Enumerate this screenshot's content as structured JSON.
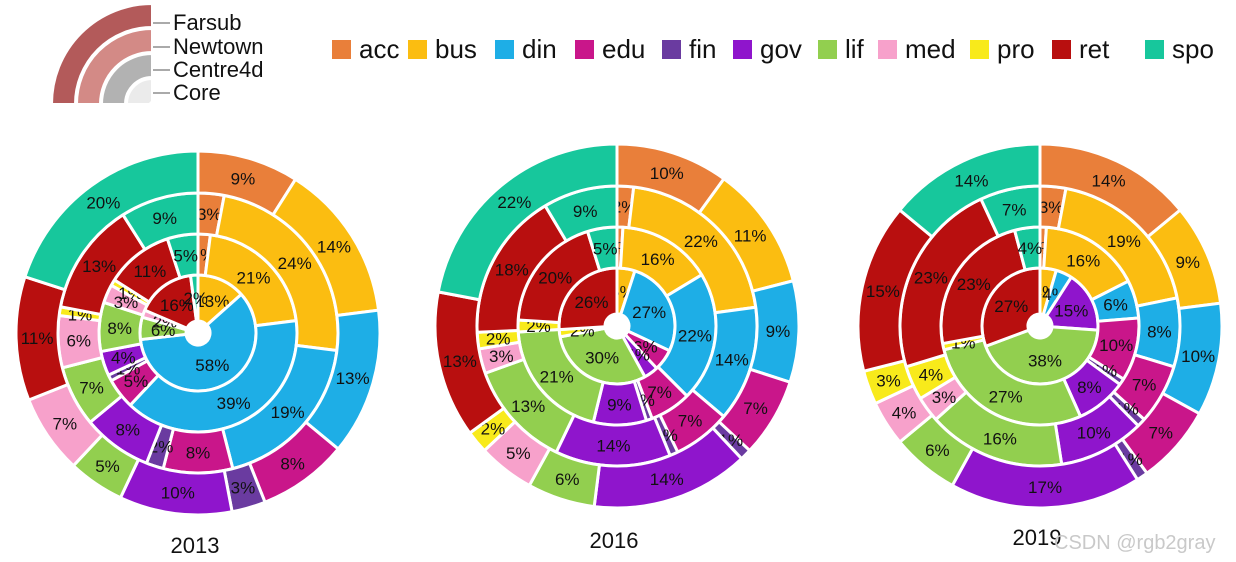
{
  "ring_legend": [
    "Farsub",
    "Newtown",
    "Centre4d",
    "Core"
  ],
  "categories": [
    "acc",
    "bus",
    "din",
    "edu",
    "fin",
    "gov",
    "lif",
    "med",
    "pro",
    "ret",
    "spo"
  ],
  "colors": {
    "acc": "#e97f3a",
    "bus": "#fbbd11",
    "din": "#1eaee6",
    "edu": "#c9168a",
    "fin": "#6a3ba0",
    "gov": "#8f15cc",
    "lif": "#92cf4f",
    "med": "#f7a1cb",
    "pro": "#f8ea1b",
    "ret": "#b80f0f",
    "spo": "#17c79c"
  },
  "ring_legend_colors": [
    "#ebebeb",
    "#b2b2b2",
    "#d38a86",
    "#b35a5a"
  ],
  "watermark": "CSDN @rgb2gray",
  "chart_data": [
    {
      "type": "pie",
      "title": "2013",
      "rings": [
        {
          "name": "Core",
          "values": {
            "acc": 0,
            "bus": 13,
            "din": 58,
            "edu": 0,
            "fin": 0,
            "gov": 0,
            "lif": 6,
            "med": 2,
            "pro": 0,
            "ret": 16,
            "spo": 2
          }
        },
        {
          "name": "Centre4d",
          "values": {
            "acc": 2,
            "bus": 21,
            "din": 39,
            "edu": 5,
            "fin": 1,
            "gov": 4,
            "lif": 8,
            "med": 3,
            "pro": 1,
            "ret": 11,
            "spo": 5
          }
        },
        {
          "name": "Newtown",
          "values": {
            "acc": 3,
            "bus": 24,
            "din": 19,
            "edu": 8,
            "fin": 2,
            "gov": 8,
            "lif": 7,
            "med": 6,
            "pro": 1,
            "ret": 13,
            "spo": 9
          }
        },
        {
          "name": "Farsub",
          "values": {
            "acc": 9,
            "bus": 14,
            "din": 13,
            "edu": 8,
            "fin": 3,
            "gov": 10,
            "lif": 5,
            "med": 7,
            "pro": 0,
            "ret": 11,
            "spo": 20
          }
        }
      ]
    },
    {
      "type": "pie",
      "title": "2016",
      "rings": [
        {
          "name": "Core",
          "values": {
            "acc": 0,
            "bus": 5,
            "din": 27,
            "edu": 6,
            "fin": 0,
            "gov": 4,
            "lif": 30,
            "med": 0,
            "pro": 2,
            "ret": 26,
            "spo": 0
          }
        },
        {
          "name": "Centre4d",
          "values": {
            "acc": 1,
            "bus": 16,
            "din": 22,
            "edu": 7,
            "fin": 1,
            "gov": 9,
            "lif": 21,
            "med": 0,
            "pro": 2,
            "ret": 20,
            "spo": 5
          }
        },
        {
          "name": "Newtown",
          "values": {
            "acc": 2,
            "bus": 22,
            "din": 14,
            "edu": 7,
            "fin": 1,
            "gov": 14,
            "lif": 13,
            "med": 3,
            "pro": 2,
            "ret": 18,
            "spo": 9
          }
        },
        {
          "name": "Farsub",
          "values": {
            "acc": 10,
            "bus": 11,
            "din": 9,
            "edu": 7,
            "fin": 1,
            "gov": 14,
            "lif": 6,
            "med": 5,
            "pro": 2,
            "ret": 13,
            "spo": 22
          }
        }
      ]
    },
    {
      "type": "pie",
      "title": "2019",
      "rings": [
        {
          "name": "Core",
          "values": {
            "acc": 0,
            "bus": 4,
            "din": 4,
            "edu": 0,
            "fin": 0,
            "gov": 15,
            "lif": 38,
            "med": 0,
            "pro": 0,
            "ret": 27,
            "spo": 0
          }
        },
        {
          "name": "Centre4d",
          "values": {
            "acc": 1,
            "bus": 16,
            "din": 6,
            "edu": 10,
            "fin": 1,
            "gov": 8,
            "lif": 27,
            "med": 0,
            "pro": 1,
            "ret": 23,
            "spo": 4
          }
        },
        {
          "name": "Newtown",
          "values": {
            "acc": 3,
            "bus": 19,
            "din": 8,
            "edu": 7,
            "fin": 1,
            "gov": 10,
            "lif": 16,
            "med": 3,
            "pro": 4,
            "ret": 23,
            "spo": 7
          }
        },
        {
          "name": "Farsub",
          "values": {
            "acc": 14,
            "bus": 9,
            "din": 10,
            "edu": 7,
            "fin": 1,
            "gov": 17,
            "lif": 6,
            "med": 4,
            "pro": 3,
            "ret": 15,
            "spo": 14
          }
        }
      ]
    }
  ]
}
